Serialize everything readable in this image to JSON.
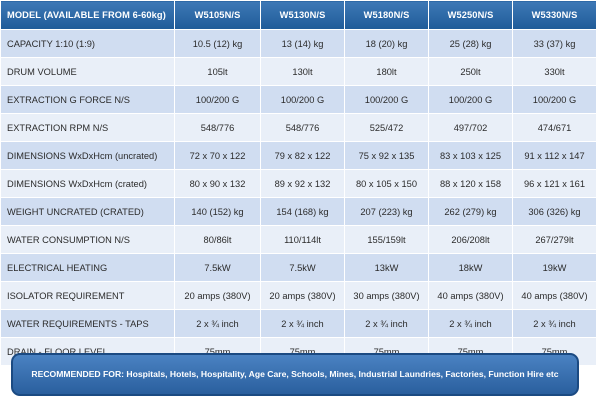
{
  "table": {
    "header": [
      "MODEL (AVAILABLE FROM 6-60kg)",
      "W5105N/S",
      "W5130N/S",
      "W5180N/S",
      "W5250N/S",
      "W5330N/S"
    ],
    "rows": [
      [
        "CAPACITY 1:10 (1:9)",
        "10.5 (12) kg",
        "13 (14) kg",
        "18 (20) kg",
        "25 (28) kg",
        "33 (37) kg"
      ],
      [
        "DRUM VOLUME",
        "105lt",
        "130lt",
        "180lt",
        "250lt",
        "330lt"
      ],
      [
        "EXTRACTION G FORCE  N/S",
        "100/200 G",
        "100/200 G",
        "100/200 G",
        "100/200 G",
        "100/200 G"
      ],
      [
        "EXTRACTION RPM  N/S",
        "548/776",
        "548/776",
        "525/472",
        "497/702",
        "474/671"
      ],
      [
        "DIMENSIONS WxDxHcm (uncrated)",
        "72 x 70 x 122",
        "79 x 82 x 122",
        "75 x 92 x 135",
        "83 x 103 x 125",
        "91 x 112 x 147"
      ],
      [
        "DIMENSIONS WxDxHcm (crated)",
        "80 x 90 x 132",
        "89 x 92 x 132",
        "80 x 105 x 150",
        "88 x 120 x 158",
        "96 x 121 x 161"
      ],
      [
        "WEIGHT UNCRATED (CRATED)",
        "140 (152) kg",
        "154 (168) kg",
        "207 (223) kg",
        "262 (279) kg",
        "306 (326) kg"
      ],
      [
        "WATER CONSUMPTION N/S",
        "80/86lt",
        "110/114lt",
        "155/159lt",
        "206/208lt",
        "267/279lt"
      ],
      [
        "ELECTRICAL HEATING",
        "7.5kW",
        "7.5kW",
        "13kW",
        "18kW",
        "19kW"
      ],
      [
        "ISOLATOR REQUIREMENT",
        "20 amps (380V)",
        "20 amps (380V)",
        "30 amps (380V)",
        "40 amps (380V)",
        "40 amps (380V)"
      ],
      [
        "WATER REQUIREMENTS - TAPS",
        "2 x ¾ inch",
        "2 x ¾ inch",
        "2 x ¾ inch",
        "2 x ¾ inch",
        "2 x ¾ inch"
      ],
      [
        "DRAIN - FLOOR LEVEL",
        "75mm",
        "75mm",
        "75mm",
        "75mm",
        "75mm"
      ]
    ]
  },
  "recommendation": {
    "text": "RECOMMENDED FOR: Hospitals, Hotels, Hospitality, Age Care, Schools, Mines, Industrial Laundries, Factories, Function Hire etc"
  },
  "colors": {
    "header_bg": "#2d69a8",
    "row_dark": "#d0ddf1",
    "row_light": "#e9eff8",
    "banner_bg": "#3a72b3",
    "banner_border": "#1b4a82"
  }
}
